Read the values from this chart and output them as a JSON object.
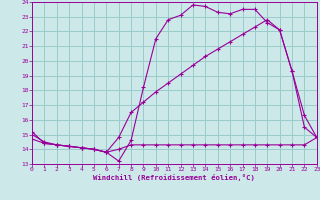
{
  "xlabel": "Windchill (Refroidissement éolien,°C)",
  "bg_color": "#cce8e8",
  "grid_color": "#99cccc",
  "line_color": "#990099",
  "xlim": [
    0,
    23
  ],
  "ylim": [
    13,
    24
  ],
  "xticks": [
    0,
    1,
    2,
    3,
    4,
    5,
    6,
    7,
    8,
    9,
    10,
    11,
    12,
    13,
    14,
    15,
    16,
    17,
    18,
    19,
    20,
    21,
    22,
    23
  ],
  "yticks": [
    13,
    14,
    15,
    16,
    17,
    18,
    19,
    20,
    21,
    22,
    23,
    24
  ],
  "series1_x": [
    0,
    1,
    2,
    3,
    4,
    5,
    6,
    7,
    8,
    9,
    10,
    11,
    12,
    13,
    14,
    15,
    16,
    17,
    18,
    19,
    20,
    21,
    22,
    23
  ],
  "series1_y": [
    15.2,
    14.4,
    14.3,
    14.2,
    14.1,
    14.0,
    13.8,
    13.2,
    14.6,
    18.2,
    21.5,
    22.8,
    23.1,
    23.8,
    23.7,
    23.3,
    23.2,
    23.5,
    23.5,
    22.6,
    22.1,
    19.3,
    16.3,
    14.8
  ],
  "series2_x": [
    0,
    1,
    2,
    3,
    4,
    5,
    6,
    7,
    8,
    9,
    10,
    11,
    12,
    13,
    14,
    15,
    16,
    17,
    18,
    19,
    20,
    21,
    22,
    23
  ],
  "series2_y": [
    15.0,
    14.5,
    14.3,
    14.2,
    14.1,
    14.0,
    13.8,
    14.8,
    16.5,
    17.2,
    17.9,
    18.5,
    19.1,
    19.7,
    20.3,
    20.8,
    21.3,
    21.8,
    22.3,
    22.8,
    22.1,
    19.3,
    15.5,
    14.8
  ],
  "series3_x": [
    0,
    1,
    2,
    3,
    4,
    5,
    6,
    7,
    8,
    9,
    10,
    11,
    12,
    13,
    14,
    15,
    16,
    17,
    18,
    19,
    20,
    21,
    22,
    23
  ],
  "series3_y": [
    14.7,
    14.4,
    14.3,
    14.2,
    14.1,
    14.0,
    13.8,
    14.0,
    14.3,
    14.3,
    14.3,
    14.3,
    14.3,
    14.3,
    14.3,
    14.3,
    14.3,
    14.3,
    14.3,
    14.3,
    14.3,
    14.3,
    14.3,
    14.8
  ]
}
